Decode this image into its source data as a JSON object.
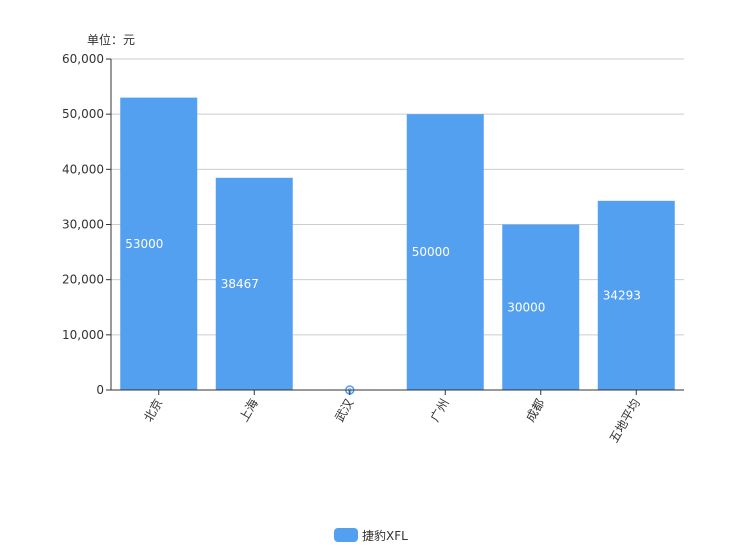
{
  "chart_data": {
    "type": "bar",
    "unit_label": "单位：元",
    "categories": [
      "北京",
      "上海",
      "武汉",
      "广州",
      "成都",
      "五地平均"
    ],
    "series": [
      {
        "name": "捷豹XFL",
        "values": [
          53000,
          38467,
          0,
          50000,
          30000,
          34293
        ],
        "color": "#539ff0"
      }
    ],
    "data_labels": [
      "53000",
      "38467",
      "0",
      "50000",
      "30000",
      "34293"
    ],
    "ylim": [
      0,
      60000
    ],
    "y_ticks": [
      0,
      10000,
      20000,
      30000,
      40000,
      50000,
      60000
    ],
    "y_tick_labels": [
      "0",
      "10,000",
      "20,000",
      "30,000",
      "40,000",
      "50,000",
      "60,000"
    ],
    "grid": true,
    "legend_position": "bottom-center"
  }
}
